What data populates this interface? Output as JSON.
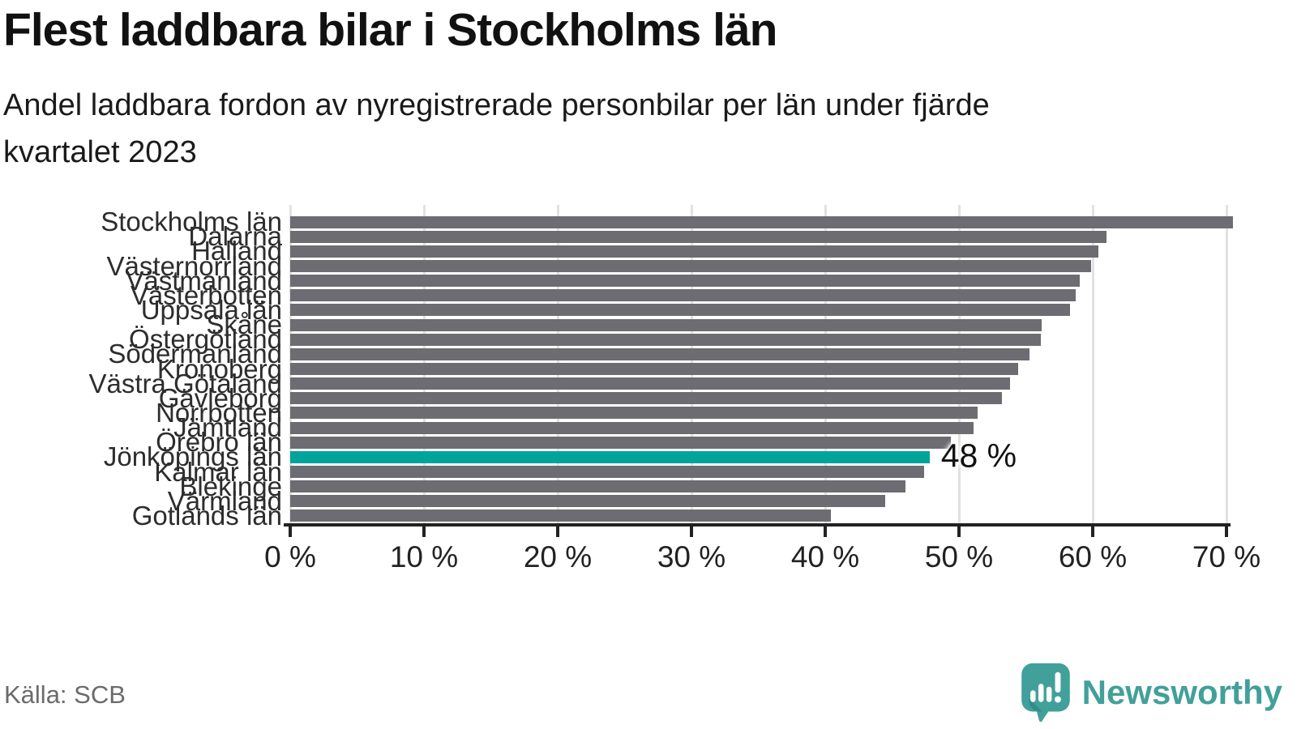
{
  "header": {
    "title": "Flest laddbara bilar i Stockholms län",
    "subtitle": "Andel laddbara fordon av nyregistrerade personbilar per län under fjärde kvartalet 2023",
    "subtitle_lines": {
      "line1": "Andel laddbara fordon av nyregistrerade personbilar per län under fjärde",
      "line2": "kvartalet 2023"
    }
  },
  "chart_data": {
    "type": "bar",
    "orientation": "horizontal",
    "title": "Flest laddbara bilar i Stockholms län",
    "subtitle": "Andel laddbara fordon av nyregistrerade personbilar per län under fjärde kvartalet 2023",
    "unit": "%",
    "categories": [
      "Stockholms län",
      "Dalarna",
      "Halland",
      "Västernorrland",
      "Västmanland",
      "Västerbotten",
      "Uppsala län",
      "Skåne",
      "Östergötland",
      "Södermanland",
      "Kronoberg",
      "Västra Götaland",
      "Gävleborg",
      "Norrbotten",
      "Jämtland",
      "Örebro län",
      "Jönköpings län",
      "Kalmar län",
      "Blekinge",
      "Värmland",
      "Gotlands län"
    ],
    "values": [
      70.5,
      61.0,
      60.4,
      59.9,
      59.0,
      58.7,
      58.3,
      56.2,
      56.1,
      55.3,
      54.4,
      53.8,
      53.2,
      51.4,
      51.1,
      49.4,
      47.8,
      47.4,
      46.0,
      44.5,
      40.4
    ],
    "highlight": {
      "index": 16,
      "category": "Jönköpings län",
      "label": "48 %"
    },
    "xlim": [
      0,
      70
    ],
    "x_tick_values": [
      0,
      10,
      20,
      30,
      40,
      50,
      60,
      70
    ],
    "x_tick_labels": [
      "0 %",
      "10 %",
      "20 %",
      "30 %",
      "40 %",
      "50 %",
      "60 %",
      "70 %"
    ],
    "xlabel": "",
    "ylabel": "",
    "grid": true,
    "legend": "none",
    "bar_color": "#6d6c72",
    "highlight_color": "#00a49b"
  },
  "footer": {
    "source": "Källa: SCB",
    "brand": "Newsworthy"
  },
  "colors": {
    "accent": "#00a49b",
    "bar": "#6d6c72",
    "brand_teal": "#42a09a",
    "brand_teal_dark": "#2e8d86",
    "axis": "#222222",
    "grid": "#e2e2e2",
    "text": "#111111",
    "muted": "#6b6b6b"
  }
}
